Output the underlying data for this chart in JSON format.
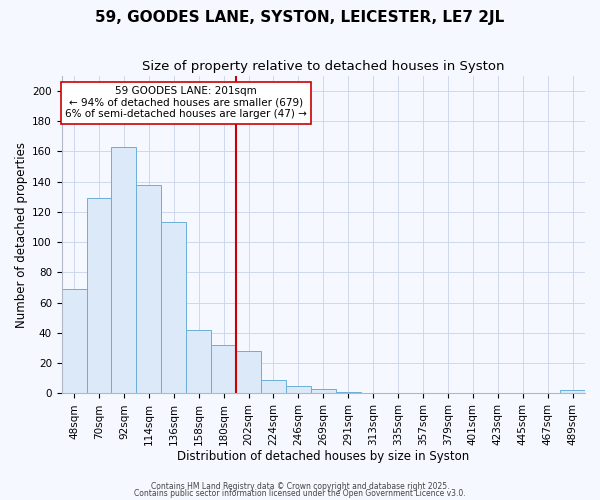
{
  "title": "59, GOODES LANE, SYSTON, LEICESTER, LE7 2JL",
  "subtitle": "Size of property relative to detached houses in Syston",
  "xlabel": "Distribution of detached houses by size in Syston",
  "ylabel": "Number of detached properties",
  "bar_labels": [
    "48sqm",
    "70sqm",
    "92sqm",
    "114sqm",
    "136sqm",
    "158sqm",
    "180sqm",
    "202sqm",
    "224sqm",
    "246sqm",
    "269sqm",
    "291sqm",
    "313sqm",
    "335sqm",
    "357sqm",
    "379sqm",
    "401sqm",
    "423sqm",
    "445sqm",
    "467sqm",
    "489sqm"
  ],
  "bar_values": [
    69,
    129,
    163,
    138,
    113,
    42,
    32,
    28,
    9,
    5,
    3,
    1,
    0,
    0,
    0,
    0,
    0,
    0,
    0,
    0,
    2
  ],
  "bar_color": "#dce9f8",
  "bar_edge_color": "#6baed6",
  "vline_x_index": 7,
  "vline_color": "#cc0000",
  "annotation_line1": "59 GOODES LANE: 201sqm",
  "annotation_line2": "← 94% of detached houses are smaller (679)",
  "annotation_line3": "6% of semi-detached houses are larger (47) →",
  "annotation_box_facecolor": "#ffffff",
  "annotation_box_edgecolor": "#cc0000",
  "ylim": [
    0,
    210
  ],
  "yticks": [
    0,
    20,
    40,
    60,
    80,
    100,
    120,
    140,
    160,
    180,
    200
  ],
  "footer1": "Contains HM Land Registry data © Crown copyright and database right 2025.",
  "footer2": "Contains public sector information licensed under the Open Government Licence v3.0.",
  "bg_color": "#f5f8fe",
  "plot_bg_color": "#f5f8fe",
  "grid_color": "#c8d4e8",
  "title_fontsize": 11,
  "subtitle_fontsize": 9.5,
  "axis_label_fontsize": 8.5,
  "tick_fontsize": 7.5,
  "annotation_fontsize": 7.5,
  "footer_fontsize": 5.5
}
